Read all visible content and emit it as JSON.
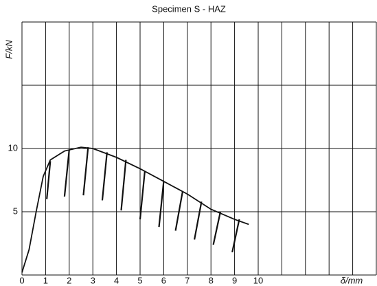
{
  "chart_data": {
    "type": "line",
    "title": "Specimen S - HAZ",
    "xlabel": "δ/mm",
    "ylabel": "F/kN",
    "xlim": [
      0,
      15
    ],
    "ylim": [
      0,
      20
    ],
    "xticks": [
      0,
      1,
      2,
      3,
      4,
      5,
      6,
      7,
      8,
      9,
      10
    ],
    "yticks": [
      5,
      10
    ],
    "xgrid": [
      0,
      1,
      2,
      3,
      4,
      5,
      6,
      7,
      8,
      9,
      10,
      11,
      12,
      13,
      14,
      15
    ],
    "ygrid": [
      0,
      5,
      10,
      15,
      20
    ],
    "grid": true,
    "color": "#111111",
    "series": [
      {
        "color": "#111111",
        "x": [
          0,
          0.3,
          0.6,
          0.9,
          1.2,
          1.8,
          2.5,
          3,
          4,
          5,
          6,
          7,
          8,
          9,
          9.6
        ],
        "values": [
          0.2,
          2,
          5,
          7.8,
          9.1,
          9.8,
          10.1,
          10.0,
          9.3,
          8.4,
          7.4,
          6.4,
          5.2,
          4.4,
          4.0
        ]
      }
    ],
    "unloading": [
      {
        "x": [
          1.2,
          1.05
        ],
        "y": [
          9.0,
          6.0
        ]
      },
      {
        "x": [
          2.0,
          1.8
        ],
        "y": [
          9.9,
          6.2
        ]
      },
      {
        "x": [
          2.8,
          2.6
        ],
        "y": [
          10.1,
          6.3
        ]
      },
      {
        "x": [
          3.6,
          3.4
        ],
        "y": [
          9.7,
          5.9
        ]
      },
      {
        "x": [
          4.4,
          4.2
        ],
        "y": [
          9.1,
          5.1
        ]
      },
      {
        "x": [
          5.2,
          5.0
        ],
        "y": [
          8.2,
          4.4
        ]
      },
      {
        "x": [
          6.0,
          5.8
        ],
        "y": [
          7.4,
          3.8
        ]
      },
      {
        "x": [
          6.8,
          6.5
        ],
        "y": [
          6.6,
          3.5
        ]
      },
      {
        "x": [
          7.6,
          7.3
        ],
        "y": [
          5.8,
          2.8
        ]
      },
      {
        "x": [
          8.4,
          8.1
        ],
        "y": [
          5.0,
          2.4
        ]
      },
      {
        "x": [
          9.2,
          8.9
        ],
        "y": [
          4.4,
          1.8
        ]
      }
    ]
  }
}
